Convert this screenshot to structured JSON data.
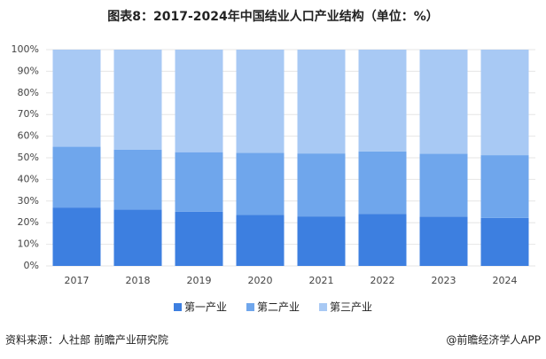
{
  "chart_data": {
    "type": "stacked_bar",
    "title": "图表8：2017-2024年中国结业人口产业结构（单位：%）",
    "categories": [
      "2017",
      "2018",
      "2019",
      "2020",
      "2021",
      "2022",
      "2023",
      "2024"
    ],
    "series": [
      {
        "name": "第一产业",
        "color": "#3d7fe0",
        "values": [
          27.0,
          26.1,
          25.1,
          23.6,
          22.9,
          24.1,
          22.8,
          22.2
        ]
      },
      {
        "name": "第二产业",
        "color": "#6fa6ec",
        "values": [
          28.1,
          27.6,
          27.5,
          28.7,
          29.1,
          28.8,
          29.1,
          29.0
        ]
      },
      {
        "name": "第三产业",
        "color": "#a8c9f4",
        "values": [
          44.9,
          46.3,
          47.4,
          47.7,
          48.0,
          47.1,
          48.1,
          48.8
        ]
      }
    ],
    "ylim": [
      0,
      100
    ],
    "yticks": [
      {
        "value": 0,
        "label": "0%"
      },
      {
        "value": 10,
        "label": "10%"
      },
      {
        "value": 20,
        "label": "20%"
      },
      {
        "value": 30,
        "label": "30%"
      },
      {
        "value": 40,
        "label": "40%"
      },
      {
        "value": 50,
        "label": "50%"
      },
      {
        "value": 60,
        "label": "60%"
      },
      {
        "value": 70,
        "label": "70%"
      },
      {
        "value": 80,
        "label": "80%"
      },
      {
        "value": 90,
        "label": "90%"
      },
      {
        "value": 100,
        "label": "100%"
      }
    ],
    "grid": true,
    "legend": "bottom",
    "source": "资料来源：人社部  前瞻产业研究院",
    "credit": "@前瞻经济学人APP"
  }
}
